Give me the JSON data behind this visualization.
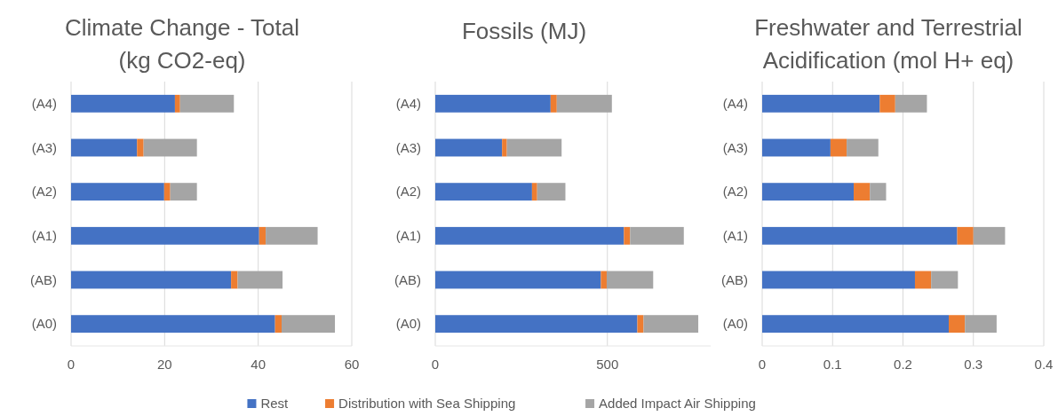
{
  "chart_data": [
    {
      "type": "bar",
      "orientation": "horizontal",
      "stacked": true,
      "title": "Climate Change - Total\n(kg CO2-eq)",
      "categories": [
        "(A4)",
        "(A3)",
        "(A2)",
        "(A1)",
        "(AB)",
        "(A0)"
      ],
      "xlim": [
        0,
        60
      ],
      "xticks": [
        0,
        20,
        40,
        60
      ],
      "grid": "x",
      "legend": "bottom",
      "series": [
        {
          "name": "Rest",
          "color": "#4472c4",
          "values": [
            22.2,
            14.1,
            19.9,
            40.2,
            34.2,
            43.6
          ]
        },
        {
          "name": "Distribution with Sea Shipping",
          "color": "#ed7d31",
          "values": [
            1.1,
            1.4,
            1.3,
            1.4,
            1.4,
            1.4
          ]
        },
        {
          "name": "Added Impact Air Shipping",
          "color": "#a5a5a5",
          "values": [
            11.5,
            11.4,
            5.7,
            11.1,
            9.6,
            11.4
          ]
        }
      ]
    },
    {
      "type": "bar",
      "orientation": "horizontal",
      "stacked": true,
      "title": "Fossils (MJ)",
      "categories": [
        "(A4)",
        "(A3)",
        "(A2)",
        "(A1)",
        "(AB)",
        "(A0)"
      ],
      "xlim": [
        0,
        800
      ],
      "xticks": [
        0,
        500
      ],
      "grid": "x",
      "series": [
        {
          "color": "#4472c4",
          "values": [
            335,
            194,
            281,
            548,
            481,
            587
          ]
        },
        {
          "color": "#ed7d31",
          "values": [
            18,
            14,
            15,
            18,
            17,
            18
          ]
        },
        {
          "color": "#a5a5a5",
          "values": [
            160,
            159,
            82,
            156,
            135,
            159
          ]
        }
      ]
    },
    {
      "type": "bar",
      "orientation": "horizontal",
      "stacked": true,
      "title": "Freshwater and Terrestrial\nAcidification (mol H+ eq)",
      "categories": [
        "(A4)",
        "(A3)",
        "(A2)",
        "(A1)",
        "(AB)",
        "(A0)"
      ],
      "xlim": [
        0,
        0.4
      ],
      "xticks": [
        0,
        0.1,
        0.2,
        0.3,
        0.4
      ],
      "grid": "x",
      "series": [
        {
          "color": "#4472c4",
          "values": [
            0.167,
            0.097,
            0.13,
            0.277,
            0.217,
            0.265
          ]
        },
        {
          "color": "#ed7d31",
          "values": [
            0.022,
            0.023,
            0.023,
            0.023,
            0.023,
            0.023
          ]
        },
        {
          "color": "#a5a5a5",
          "values": [
            0.045,
            0.045,
            0.023,
            0.045,
            0.038,
            0.045
          ]
        }
      ]
    }
  ]
}
